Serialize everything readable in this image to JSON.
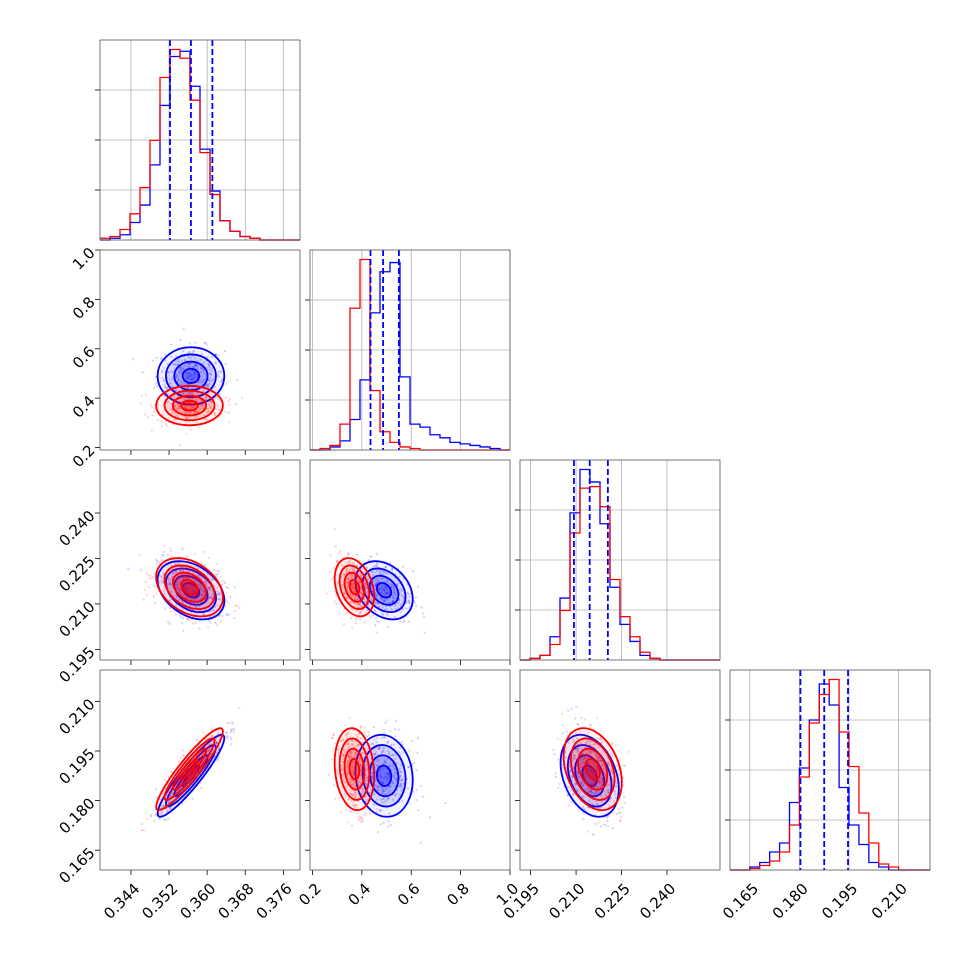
{
  "chart_data": {
    "type": "corner",
    "series": [
      {
        "name": "",
        "color": "#0000ff"
      },
      {
        "name": "",
        "color": "#ff0000"
      }
    ],
    "parameters": [
      {
        "range": [
          0.3375,
          0.3795
        ],
        "ticks": [
          "0.344",
          "0.352",
          "0.360",
          "0.368",
          "0.376"
        ]
      },
      {
        "range": [
          0.19,
          1.0
        ],
        "ticks": [
          "0.2",
          "0.4",
          "0.6",
          "0.8",
          "1.0"
        ]
      },
      {
        "range": [
          0.1915,
          0.2575
        ],
        "ticks": [
          "0.195",
          "0.210",
          "0.225",
          "0.240"
        ]
      },
      {
        "range": [
          0.159,
          0.2195
        ],
        "ticks": [
          "0.165",
          "0.180",
          "0.195",
          "0.210"
        ]
      }
    ],
    "grid": true,
    "marginals": [
      {
        "bin_edges": [
          0.3375,
          0.3396,
          0.3417,
          0.3438,
          0.3459,
          0.348,
          0.3501,
          0.3522,
          0.3543,
          0.3564,
          0.3585,
          0.3606,
          0.3627,
          0.3648,
          0.3669,
          0.369,
          0.3711,
          0.3732,
          0.3753,
          0.3774,
          0.3795
        ],
        "blue_counts": [
          0,
          1,
          3,
          10,
          20,
          43,
          77,
          105,
          108,
          88,
          52,
          28,
          11,
          5,
          2,
          1,
          0,
          0,
          0,
          0
        ],
        "red_counts": [
          1,
          2,
          6,
          15,
          30,
          57,
          93,
          109,
          104,
          80,
          50,
          26,
          11,
          5,
          2,
          1,
          0,
          0,
          0,
          0
        ],
        "quantiles": [
          0.3522,
          0.3566,
          0.3611
        ]
      },
      {
        "bin_edges": [
          0.19,
          0.2305,
          0.271,
          0.3115,
          0.352,
          0.3925,
          0.433,
          0.4735,
          0.514,
          0.5545,
          0.595,
          0.6355,
          0.676,
          0.7165,
          0.757,
          0.7975,
          0.838,
          0.8785,
          0.919,
          0.9595,
          1.0
        ],
        "blue_counts": [
          0,
          0,
          2,
          6,
          20,
          46,
          90,
          117,
          123,
          48,
          17,
          15,
          10,
          8,
          5,
          4,
          3,
          2,
          1,
          0
        ],
        "red_counts": [
          0,
          1,
          3,
          17,
          93,
          125,
          39,
          12,
          5,
          2,
          1,
          0,
          0,
          0,
          0,
          0,
          0,
          0,
          0,
          0
        ],
        "quantiles": [
          0.435,
          0.486,
          0.55
        ]
      },
      {
        "bin_edges": [
          0.1915,
          0.1948,
          0.1981,
          0.2014,
          0.2047,
          0.208,
          0.2113,
          0.2146,
          0.2179,
          0.2212,
          0.2245,
          0.2278,
          0.2311,
          0.2344,
          0.2377,
          0.241,
          0.2443,
          0.2476,
          0.2509,
          0.2542,
          0.2575
        ],
        "blue_counts": [
          0,
          1,
          3,
          15,
          40,
          95,
          123,
          115,
          88,
          47,
          23,
          12,
          3,
          1,
          0,
          0,
          0,
          0,
          0,
          0
        ],
        "red_counts": [
          0,
          1,
          3,
          10,
          32,
          82,
          111,
          112,
          99,
          52,
          28,
          15,
          5,
          1,
          0,
          0,
          0,
          0,
          0,
          0
        ],
        "quantiles": [
          0.2093,
          0.2145,
          0.2205
        ]
      },
      {
        "bin_edges": [
          0.159,
          0.162,
          0.165,
          0.168,
          0.171,
          0.174,
          0.177,
          0.18,
          0.183,
          0.186,
          0.189,
          0.192,
          0.195,
          0.198,
          0.201,
          0.204,
          0.207,
          0.21,
          0.213,
          0.216,
          0.2195
        ],
        "blue_counts": [
          0,
          0,
          2,
          5,
          12,
          18,
          45,
          68,
          100,
          124,
          110,
          55,
          30,
          17,
          5,
          2,
          0,
          0,
          0,
          0
        ],
        "red_counts": [
          0,
          0,
          1,
          3,
          6,
          12,
          30,
          62,
          98,
          117,
          127,
          92,
          69,
          38,
          18,
          4,
          2,
          0,
          0,
          0
        ],
        "quantiles": [
          0.1803,
          0.1875,
          0.1947
        ]
      }
    ],
    "pair_means": {
      "blue": [
        0.3566,
        0.49,
        0.2145,
        0.1875
      ],
      "red": [
        0.3563,
        0.37,
        0.2155,
        0.1895
      ]
    },
    "pair_correlations": {
      "1-0": {
        "blue": 0.0,
        "red": 0.0
      },
      "2-0": {
        "blue": -0.35,
        "red": -0.35
      },
      "2-1": {
        "blue": -0.3,
        "red": -0.3
      },
      "3-0": {
        "blue": 0.92,
        "red": 0.92
      },
      "3-1": {
        "blue": -0.1,
        "red": -0.15
      },
      "3-2": {
        "blue": -0.32,
        "red": -0.32
      }
    },
    "pair_spreads": {
      "blue": [
        0.0035,
        0.058,
        0.0048,
        0.0062
      ],
      "red": [
        0.0035,
        0.04,
        0.0048,
        0.0062
      ]
    }
  }
}
